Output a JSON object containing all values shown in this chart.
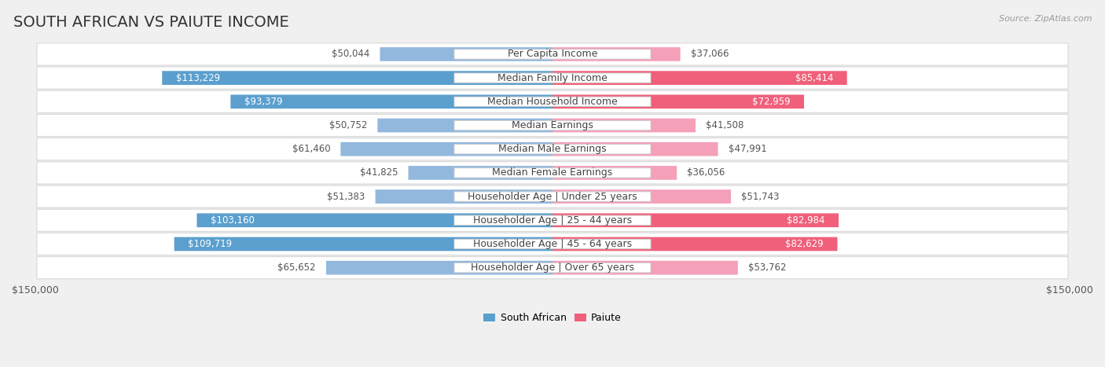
{
  "title": "SOUTH AFRICAN VS PAIUTE INCOME",
  "source": "Source: ZipAtlas.com",
  "categories": [
    "Per Capita Income",
    "Median Family Income",
    "Median Household Income",
    "Median Earnings",
    "Median Male Earnings",
    "Median Female Earnings",
    "Householder Age | Under 25 years",
    "Householder Age | 25 - 44 years",
    "Householder Age | 45 - 64 years",
    "Householder Age | Over 65 years"
  ],
  "south_african": [
    50044,
    113229,
    93379,
    50752,
    61460,
    41825,
    51383,
    103160,
    109719,
    65652
  ],
  "paiute": [
    37066,
    85414,
    72959,
    41508,
    47991,
    36056,
    51743,
    82984,
    82629,
    53762
  ],
  "max_val": 150000,
  "color_sa": "#92b8de",
  "color_paiute": "#f4a0b8",
  "color_sa_strong": "#5b9fce",
  "color_paiute_strong": "#f0607a",
  "bg_color": "#f0f0f0",
  "row_bg_white": "#ffffff",
  "row_bg_light": "#f8f8f8",
  "title_fontsize": 14,
  "label_fontsize": 9,
  "value_fontsize": 8.5,
  "legend_fontsize": 9,
  "sa_inside_threshold": 75000,
  "pa_inside_threshold": 65000
}
